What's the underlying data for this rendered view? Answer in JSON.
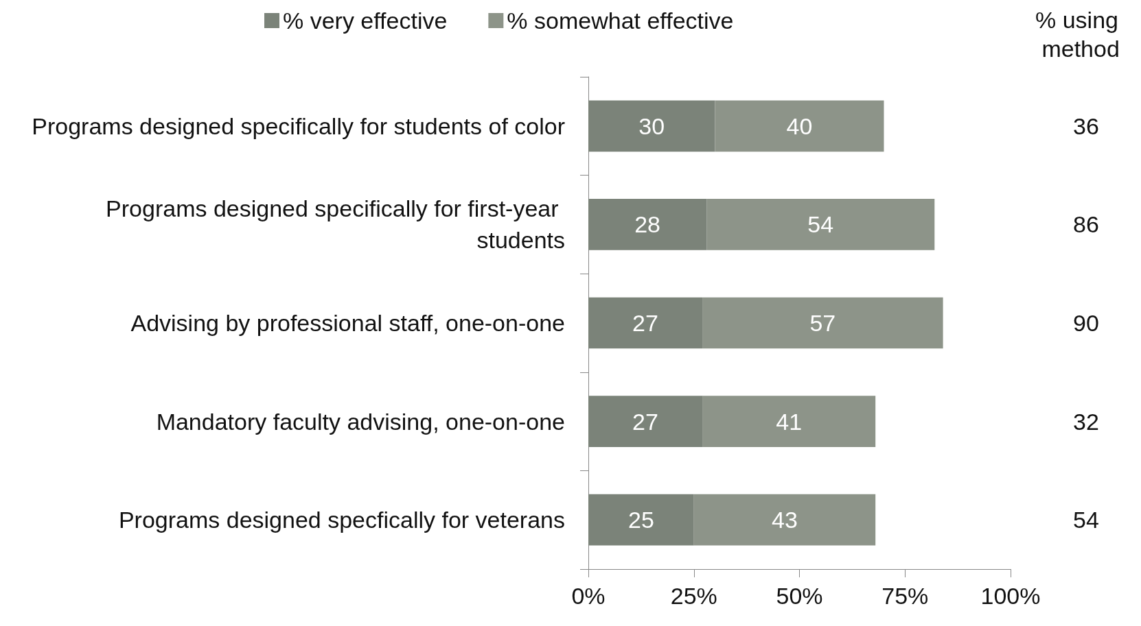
{
  "chart_data": {
    "type": "bar",
    "orientation": "horizontal",
    "stacked": true,
    "categories": [
      "Programs designed specifically for students of color",
      "Programs designed specifically for first-year students",
      "Advising by professional staff, one-on-one",
      "Mandatory faculty advising, one-on-one",
      "Programs designed specfically for veterans"
    ],
    "series": [
      {
        "name": "% very effective",
        "color": "#7b8379",
        "values": [
          30,
          28,
          27,
          27,
          25
        ]
      },
      {
        "name": "% somewhat effective",
        "color": "#8d9489",
        "values": [
          40,
          54,
          57,
          41,
          43
        ]
      }
    ],
    "xlim": [
      0,
      100
    ],
    "xticks": [
      {
        "value": 0,
        "label": "0%"
      },
      {
        "value": 25,
        "label": "25%"
      },
      {
        "value": 50,
        "label": "50%"
      },
      {
        "value": 75,
        "label": "75%"
      },
      {
        "value": 100,
        "label": "100%"
      }
    ],
    "data_labels": true,
    "legend": "top",
    "grid": false,
    "annotations": [
      "% using method",
      "36",
      "86",
      "90",
      "32",
      "54"
    ]
  }
}
